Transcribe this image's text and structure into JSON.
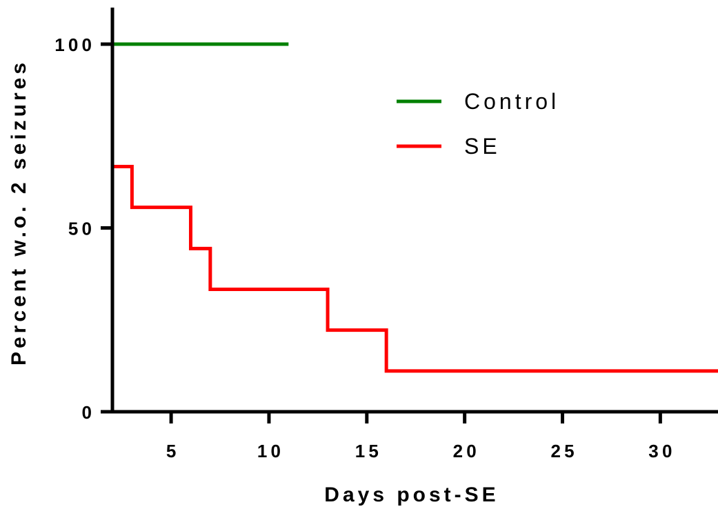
{
  "chart_data": {
    "type": "line",
    "subtype": "step (survival curve)",
    "title": "",
    "xlabel": "Days post-SE",
    "ylabel": "Percent w.o. 2 seizures",
    "xlim": [
      2,
      33
    ],
    "ylim": [
      0,
      110
    ],
    "xticks": [
      5,
      10,
      15,
      20,
      25,
      30
    ],
    "yticks": [
      0,
      50,
      100
    ],
    "grid": false,
    "legend_position": "top-right",
    "series": [
      {
        "name": "Control",
        "color": "#008000",
        "x": [
          2,
          11
        ],
        "y": [
          100,
          100
        ]
      },
      {
        "name": "SE",
        "color": "#ff0000",
        "x": [
          2,
          3,
          6,
          7,
          13,
          16,
          33
        ],
        "y": [
          66.7,
          55.6,
          44.4,
          33.3,
          22.2,
          11.1,
          11.1
        ]
      }
    ]
  }
}
